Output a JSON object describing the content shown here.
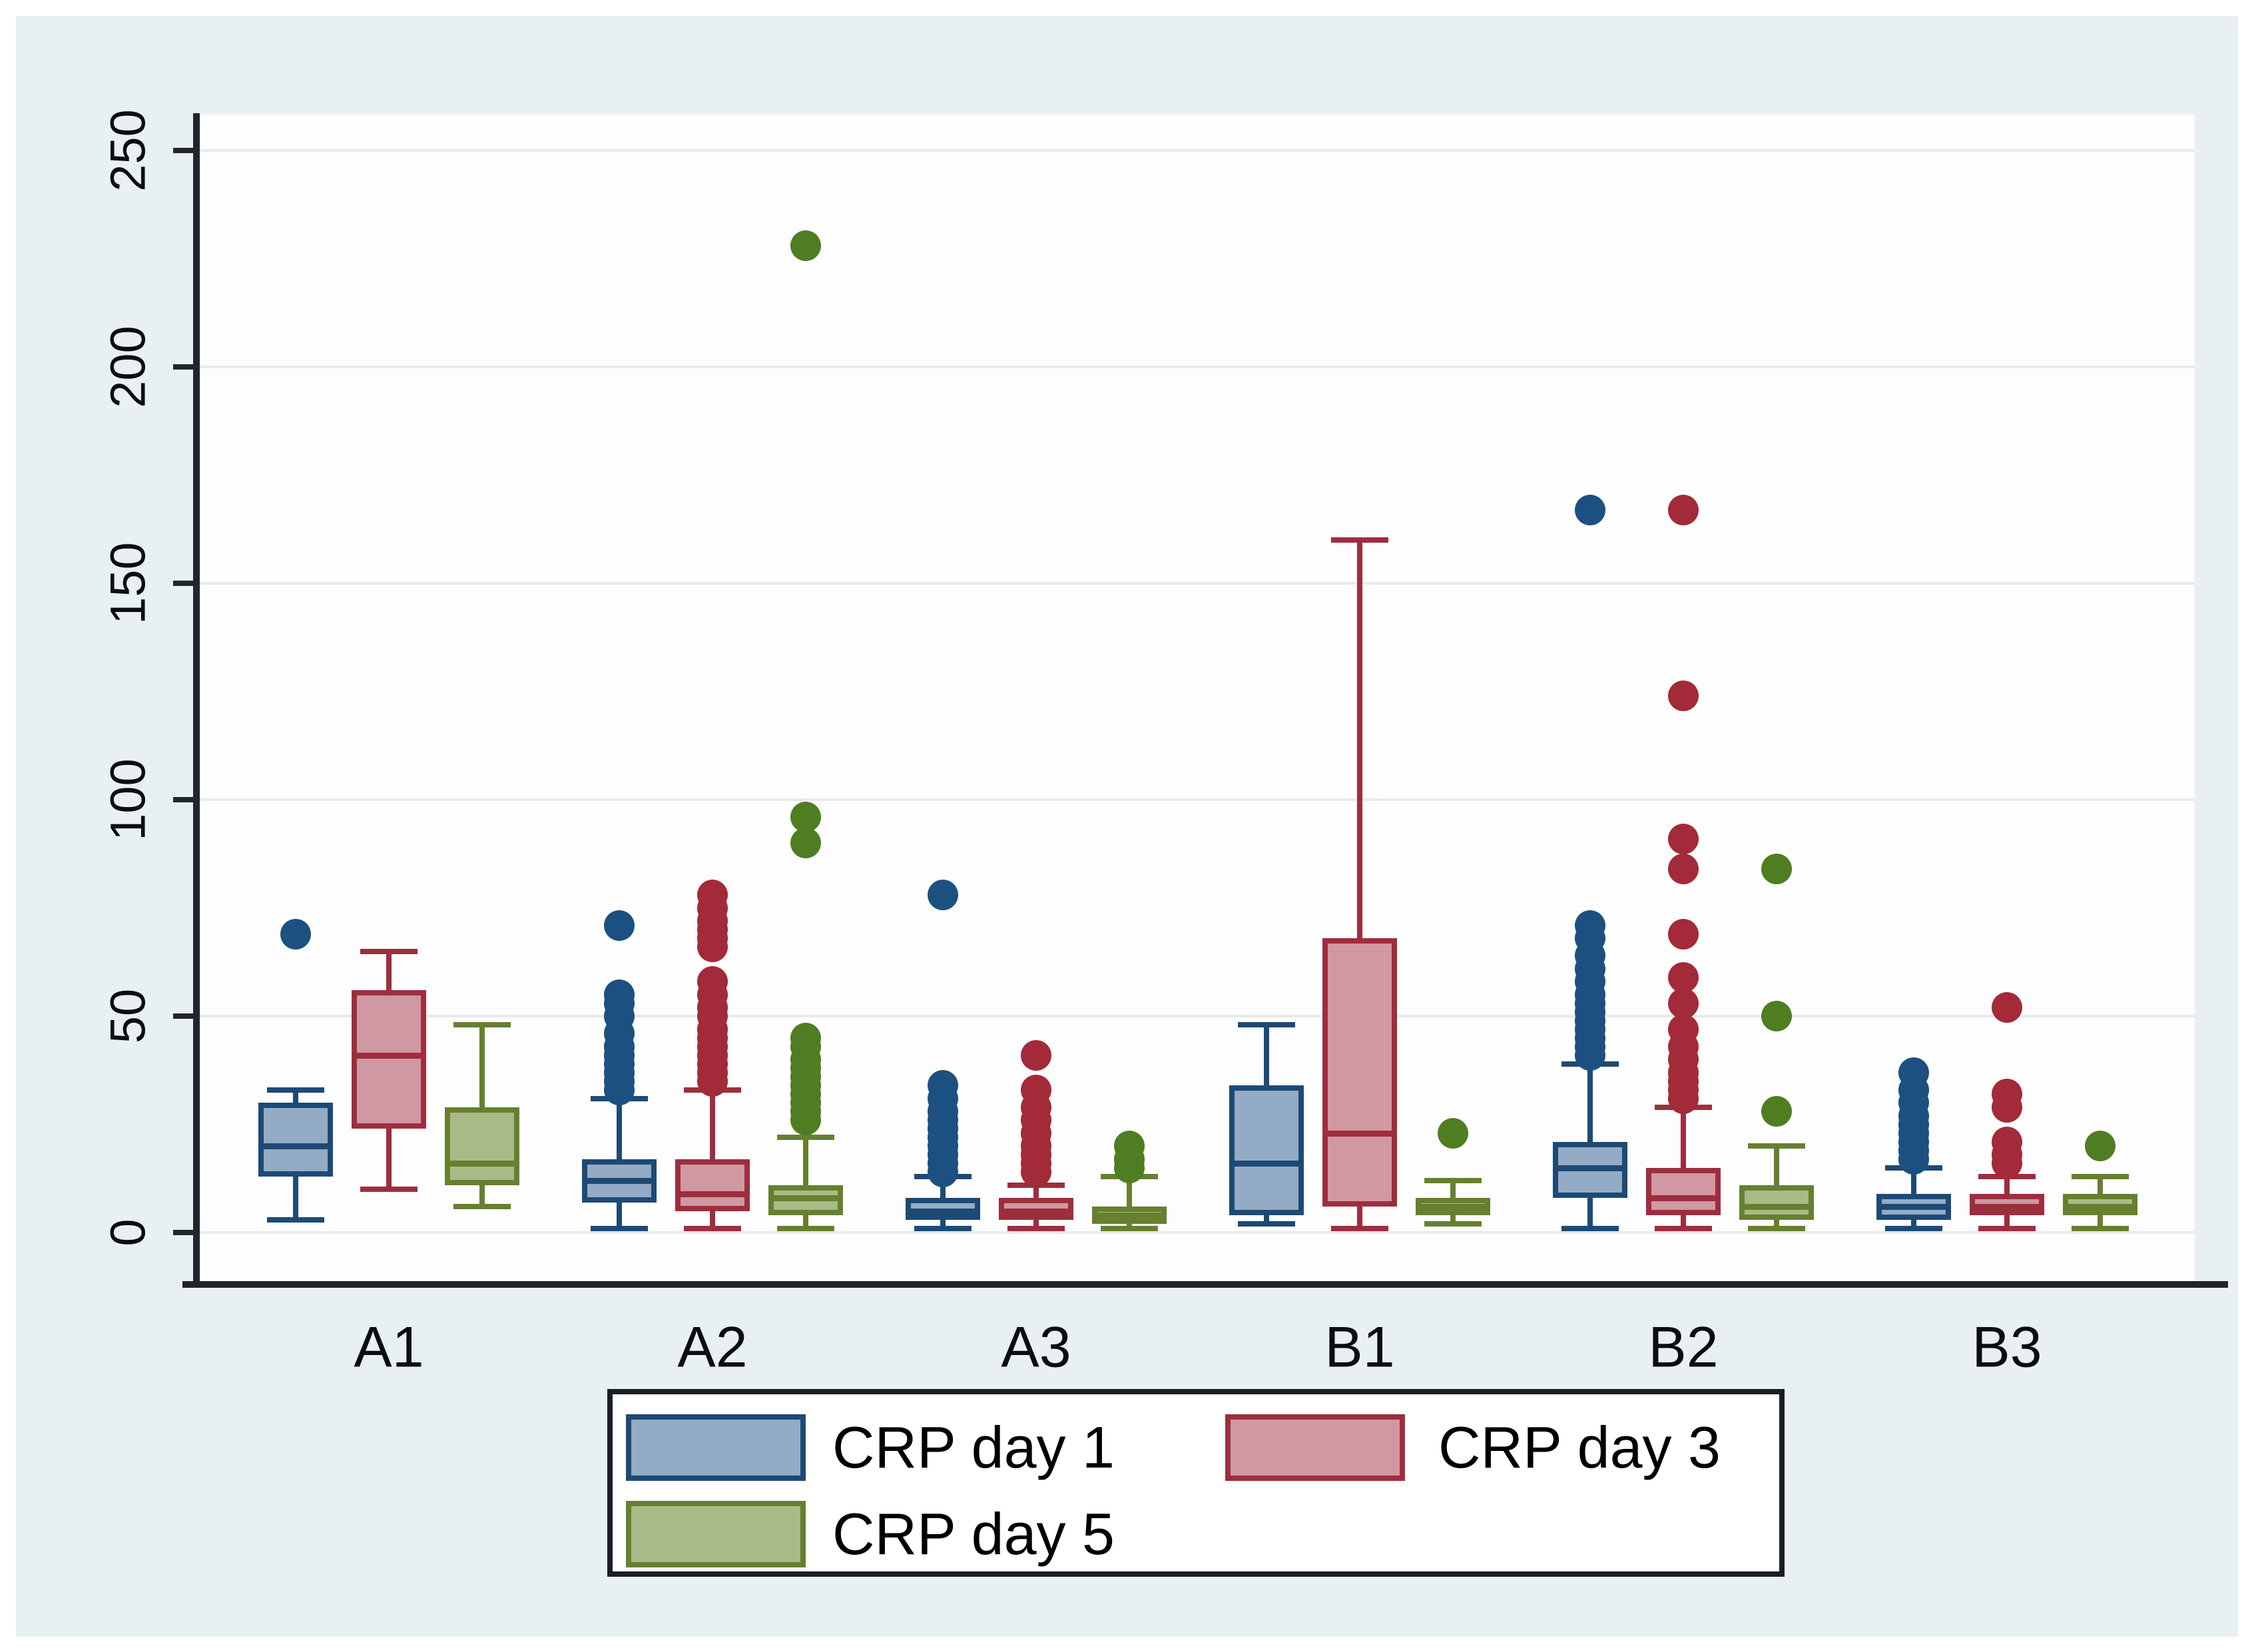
{
  "figure": {
    "canvas_bg": "#e9f0f1",
    "plot_bg": "#fdfdfd",
    "grid_color": "#e6eaeb",
    "axis_color": "#20262b",
    "text_color": "#0b0e10"
  },
  "y_axis": {
    "tick_labels": [
      "0",
      "50",
      "100",
      "150",
      "200",
      "250"
    ],
    "tick_values": [
      0,
      50,
      100,
      150,
      200,
      250
    ]
  },
  "x_axis": {
    "labels": [
      "A1",
      "A2",
      "A3",
      "B1",
      "B2",
      "B3"
    ]
  },
  "legend": {
    "items": [
      {
        "label": "CRP day 1",
        "fill": "#94abc5",
        "stroke": "#1d4a75"
      },
      {
        "label": "CRP day 3",
        "fill": "#d098a2",
        "stroke": "#9d2e3e"
      },
      {
        "label": "CRP day 5",
        "fill": "#aaba87",
        "stroke": "#66802f"
      }
    ]
  },
  "chart_data": {
    "type": "box",
    "title": "",
    "xlabel": "",
    "ylabel": "",
    "ylim": [
      -12,
      258
    ],
    "grid": true,
    "legend_position": "bottom",
    "categories": [
      "A1",
      "A2",
      "A3",
      "B1",
      "B2",
      "B3"
    ],
    "series": [
      {
        "name": "CRP day 1",
        "fill": "#94abc5",
        "stroke": "#1d4a75",
        "dot": "#1c5080",
        "boxes": [
          {
            "group": "A1",
            "min": 3,
            "q1": 13,
            "med": 20,
            "q3": 30,
            "max": 33,
            "outliers": [
              69
            ]
          },
          {
            "group": "A2",
            "min": 1,
            "q1": 7,
            "med": 12,
            "q3": 17,
            "max": 31,
            "outliers": [
              33,
              35,
              37,
              39,
              41,
              43,
              46,
              50,
              53,
              55,
              71
            ]
          },
          {
            "group": "A3",
            "min": 1,
            "q1": 3,
            "med": 5,
            "q3": 8,
            "max": 13,
            "outliers": [
              14,
              16,
              18,
              20,
              22,
              24,
              26,
              28,
              31,
              34,
              78
            ]
          },
          {
            "group": "B1",
            "min": 2,
            "q1": 4,
            "med": 16,
            "q3": 34,
            "max": 48,
            "outliers": []
          },
          {
            "group": "B2",
            "min": 1,
            "q1": 8,
            "med": 15,
            "q3": 21,
            "max": 39,
            "outliers": [
              41,
              43,
              45,
              47,
              49,
              51,
              53,
              55,
              58,
              61,
              64,
              68,
              71,
              167
            ]
          },
          {
            "group": "B3",
            "min": 1,
            "q1": 3,
            "med": 6,
            "q3": 9,
            "max": 15,
            "outliers": [
              17,
              19,
              21,
              23,
              25,
              27,
              30,
              33,
              37
            ]
          }
        ]
      },
      {
        "name": "CRP day 3",
        "fill": "#d098a2",
        "stroke": "#9d2e3e",
        "dot": "#a32a38",
        "boxes": [
          {
            "group": "A1",
            "min": 10,
            "q1": 24,
            "med": 41,
            "q3": 56,
            "max": 65,
            "outliers": []
          },
          {
            "group": "A2",
            "min": 1,
            "q1": 5,
            "med": 9,
            "q3": 17,
            "max": 33,
            "outliers": [
              35,
              37,
              39,
              41,
              43,
              45,
              47,
              50,
              52,
              55,
              58,
              66,
              68,
              70,
              72,
              75,
              78
            ]
          },
          {
            "group": "A3",
            "min": 1,
            "q1": 3,
            "med": 5,
            "q3": 8,
            "max": 11,
            "outliers": [
              14,
              16,
              18,
              20,
              23,
              26,
              29,
              33,
              41
            ]
          },
          {
            "group": "B1",
            "min": 1,
            "q1": 6,
            "med": 23,
            "q3": 68,
            "max": 160,
            "outliers": []
          },
          {
            "group": "B2",
            "min": 1,
            "q1": 4,
            "med": 8,
            "q3": 15,
            "max": 29,
            "outliers": [
              31,
              33,
              35,
              37,
              40,
              43,
              47,
              53,
              59,
              69,
              84,
              91,
              124,
              167
            ]
          },
          {
            "group": "B3",
            "min": 1,
            "q1": 4,
            "med": 6,
            "q3": 9,
            "max": 13,
            "outliers": [
              16,
              18,
              21,
              29,
              32,
              52
            ]
          }
        ]
      },
      {
        "name": "CRP day 5",
        "fill": "#aaba87",
        "stroke": "#66802f",
        "dot": "#4f7d21",
        "boxes": [
          {
            "group": "A1",
            "min": 6,
            "q1": 11,
            "med": 16,
            "q3": 29,
            "max": 48,
            "outliers": []
          },
          {
            "group": "A2",
            "min": 1,
            "q1": 4,
            "med": 8,
            "q3": 11,
            "max": 22,
            "outliers": [
              26,
              28,
              30,
              32,
              34,
              36,
              38,
              40,
              43,
              45,
              90,
              96,
              228
            ]
          },
          {
            "group": "A3",
            "min": 1,
            "q1": 2,
            "med": 4,
            "q3": 6,
            "max": 13,
            "outliers": [
              15,
              17,
              20
            ]
          },
          {
            "group": "B1",
            "min": 2,
            "q1": 4,
            "med": 6,
            "q3": 8,
            "max": 12,
            "outliers": [
              23
            ]
          },
          {
            "group": "B2",
            "min": 1,
            "q1": 3,
            "med": 6,
            "q3": 11,
            "max": 20,
            "outliers": [
              28,
              50,
              84
            ]
          },
          {
            "group": "B3",
            "min": 1,
            "q1": 4,
            "med": 6,
            "q3": 9,
            "max": 13,
            "outliers": [
              20
            ]
          }
        ]
      }
    ]
  }
}
